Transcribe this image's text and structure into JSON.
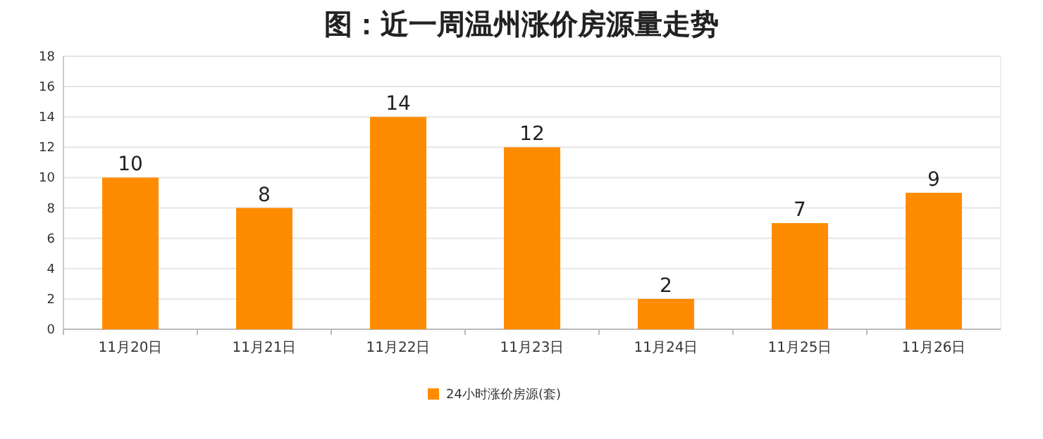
{
  "chart_data": {
    "type": "bar",
    "title": "图：近一周温州涨价房源量走势",
    "categories": [
      "11月20日",
      "11月21日",
      "11月22日",
      "11月23日",
      "11月24日",
      "11月25日",
      "11月26日"
    ],
    "series": [
      {
        "name": "24小时涨价房源(套)",
        "color": "#ff8c00",
        "values": [
          10,
          8,
          14,
          12,
          2,
          7,
          9
        ]
      }
    ],
    "ylim": [
      0,
      18
    ],
    "yticks": [
      0,
      2,
      4,
      6,
      8,
      10,
      12,
      14,
      16,
      18
    ],
    "grid": "y",
    "legend": "bottom",
    "data_labels": true
  }
}
